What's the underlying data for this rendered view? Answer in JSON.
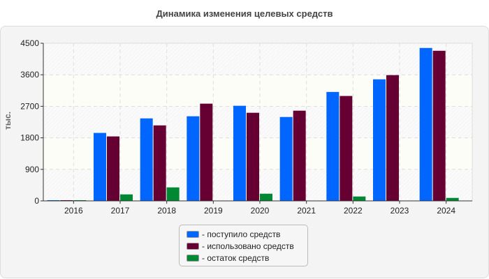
{
  "chart_data": {
    "type": "bar",
    "title": "Динамика изменения целевых средств",
    "ylabel": "тыс.",
    "xlabel": "",
    "ylim": [
      0,
      4500
    ],
    "yticks": [
      "0",
      "900",
      "1800",
      "2700",
      "3600",
      "4500"
    ],
    "grid": true,
    "legend_position": "bottom",
    "categories": [
      "2016",
      "2017",
      "2018",
      "2019",
      "2020",
      "2021",
      "2022",
      "2023",
      "2024"
    ],
    "series": [
      {
        "name": "- поступило средств",
        "color": "#0066ff",
        "values": [
          20,
          1940,
          2355,
          2415,
          2715,
          2395,
          3110,
          3470,
          4365
        ]
      },
      {
        "name": "- использовано средств",
        "color": "#660033",
        "values": [
          20,
          1840,
          2155,
          2775,
          2515,
          2575,
          2995,
          3590,
          4285
        ]
      },
      {
        "name": "- остаток средств",
        "color": "#008833",
        "values": [
          20,
          185,
          385,
          10,
          205,
          10,
          125,
          10,
          85
        ]
      }
    ]
  }
}
